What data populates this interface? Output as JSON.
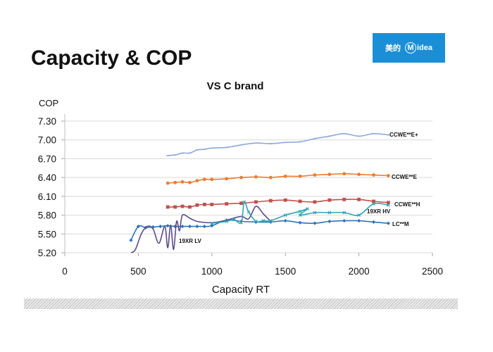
{
  "slide": {
    "title": "Capacity & COP",
    "logo": {
      "chinese": "美的",
      "brand_initial": "M",
      "brand_rest": "idea",
      "bg_color": "#1b8fd6"
    }
  },
  "chart_data": {
    "type": "line",
    "title": "VS C brand",
    "xlabel": "Capacity RT",
    "ylabel": "COP",
    "xlim": [
      0,
      2500
    ],
    "ylim": [
      5.2,
      7.3
    ],
    "xticks": [
      "0",
      "500",
      "1000",
      "1500",
      "2000",
      "2500"
    ],
    "yticks": [
      "7.30",
      "7.00",
      "6.70",
      "6.40",
      "6.10",
      "5.80",
      "5.50",
      "5.20"
    ],
    "grid": "horizontal",
    "legend": "inline labels at line ends",
    "series": [
      {
        "name": "CCWE**E+",
        "color": "#8ea9db",
        "marker": "dash",
        "x": [
          700,
          750,
          800,
          850,
          900,
          950,
          1000,
          1100,
          1200,
          1300,
          1400,
          1500,
          1600,
          1700,
          1800,
          1900,
          2000,
          2100,
          2200
        ],
        "y": [
          6.75,
          6.76,
          6.79,
          6.79,
          6.84,
          6.85,
          6.87,
          6.88,
          6.92,
          6.95,
          6.94,
          6.96,
          6.97,
          7.02,
          7.06,
          7.1,
          7.06,
          7.1,
          7.08
        ]
      },
      {
        "name": "CCWE**E",
        "color": "#ed7d31",
        "marker": "circle",
        "x": [
          700,
          750,
          800,
          850,
          900,
          950,
          1000,
          1100,
          1200,
          1300,
          1400,
          1500,
          1600,
          1700,
          1800,
          1900,
          2000,
          2100,
          2200
        ],
        "y": [
          6.31,
          6.32,
          6.33,
          6.32,
          6.35,
          6.37,
          6.37,
          6.38,
          6.4,
          6.41,
          6.4,
          6.42,
          6.42,
          6.44,
          6.45,
          6.46,
          6.45,
          6.44,
          6.43
        ]
      },
      {
        "name": "CCWE**H",
        "color": "#c0504d",
        "marker": "square",
        "x": [
          700,
          750,
          800,
          850,
          900,
          950,
          1000,
          1100,
          1200,
          1300,
          1400,
          1500,
          1600,
          1700,
          1800,
          1900,
          2000,
          2100,
          2200
        ],
        "y": [
          5.93,
          5.93,
          5.94,
          5.93,
          5.96,
          5.97,
          5.97,
          5.98,
          5.99,
          6.01,
          6.03,
          6.04,
          6.02,
          6.01,
          6.04,
          6.05,
          6.05,
          6.02,
          6.0
        ]
      },
      {
        "name": "LC**M",
        "color": "#2e75b6",
        "marker": "diamond",
        "x": [
          450,
          500,
          550,
          600,
          650,
          700,
          750,
          800,
          850,
          900,
          950,
          1000,
          1100,
          1200,
          1300,
          1400,
          1500,
          1600,
          1700,
          1800,
          1900,
          2000,
          2100,
          2200
        ],
        "y": [
          5.4,
          5.62,
          5.6,
          5.61,
          5.62,
          5.63,
          5.62,
          5.62,
          5.62,
          5.62,
          5.62,
          5.63,
          5.72,
          5.7,
          5.69,
          5.69,
          5.71,
          5.68,
          5.67,
          5.7,
          5.71,
          5.71,
          5.69,
          5.67
        ]
      },
      {
        "name": "19XR LV",
        "color": "#5b4a8b",
        "marker": "none",
        "x": [
          450,
          480,
          520,
          560,
          600,
          640,
          680,
          700,
          720,
          740,
          760,
          780,
          800,
          850,
          900,
          1000,
          1100,
          1200,
          1250,
          1300,
          1350,
          1400
        ],
        "y": [
          5.2,
          5.25,
          5.5,
          5.62,
          5.58,
          5.35,
          5.62,
          5.28,
          5.64,
          5.25,
          5.7,
          5.55,
          5.8,
          5.75,
          5.7,
          5.68,
          5.72,
          5.78,
          5.74,
          5.94,
          5.82,
          5.7
        ]
      },
      {
        "name": "19XR HV",
        "color": "#31a3b4",
        "marker": "x",
        "x": [
          1000,
          1100,
          1150,
          1200,
          1220,
          1250,
          1300,
          1350,
          1400,
          1500,
          1600,
          1650,
          1600,
          1700,
          1800,
          1900,
          2000,
          2100,
          2200
        ],
        "y": [
          5.67,
          5.7,
          5.73,
          5.68,
          6.01,
          5.85,
          5.7,
          5.71,
          5.71,
          5.8,
          5.86,
          5.9,
          5.8,
          5.84,
          5.84,
          5.84,
          5.8,
          5.98,
          5.96
        ]
      }
    ]
  }
}
